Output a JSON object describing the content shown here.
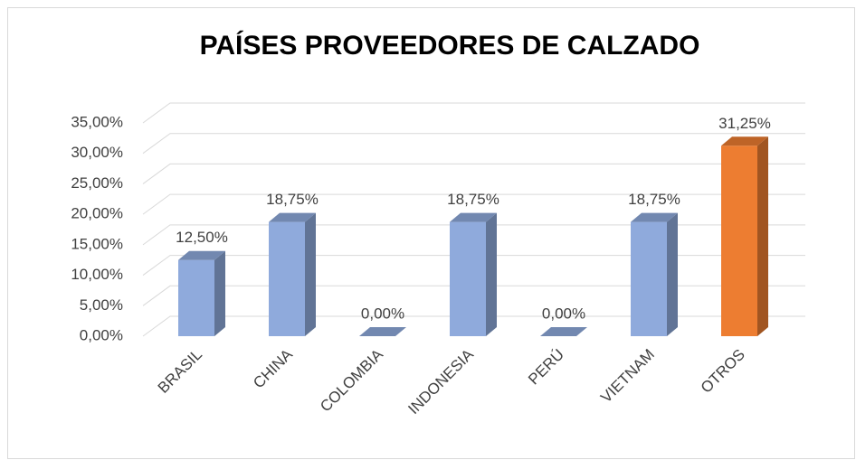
{
  "chart_data": {
    "type": "bar3d",
    "title": "PAÍSES PROVEEDORES DE CALZADO",
    "categories": [
      "BRASIL",
      "CHINA",
      "COLOMBIA",
      "INDONESIA",
      "PERÚ",
      "VIETNAM",
      "OTROS"
    ],
    "values": [
      12.5,
      18.75,
      0,
      18.75,
      0,
      18.75,
      31.25
    ],
    "value_labels": [
      "12,50%",
      "18,75%",
      "0,00%",
      "18,75%",
      "0,00%",
      "18,75%",
      "31,25%"
    ],
    "colors": [
      "#8faadc",
      "#8faadc",
      "#8faadc",
      "#8faadc",
      "#8faadc",
      "#8faadc",
      "#ed7d31"
    ],
    "ylim": [
      0,
      35
    ],
    "yticks": [
      {
        "value": 0,
        "label": "0,00%"
      },
      {
        "value": 5,
        "label": "5,00%"
      },
      {
        "value": 10,
        "label": "10,00%"
      },
      {
        "value": 15,
        "label": "15,00%"
      },
      {
        "value": 20,
        "label": "20,00%"
      },
      {
        "value": 25,
        "label": "25,00%"
      },
      {
        "value": 30,
        "label": "30,00%"
      },
      {
        "value": 35,
        "label": "35,00%"
      }
    ],
    "grid": true
  }
}
